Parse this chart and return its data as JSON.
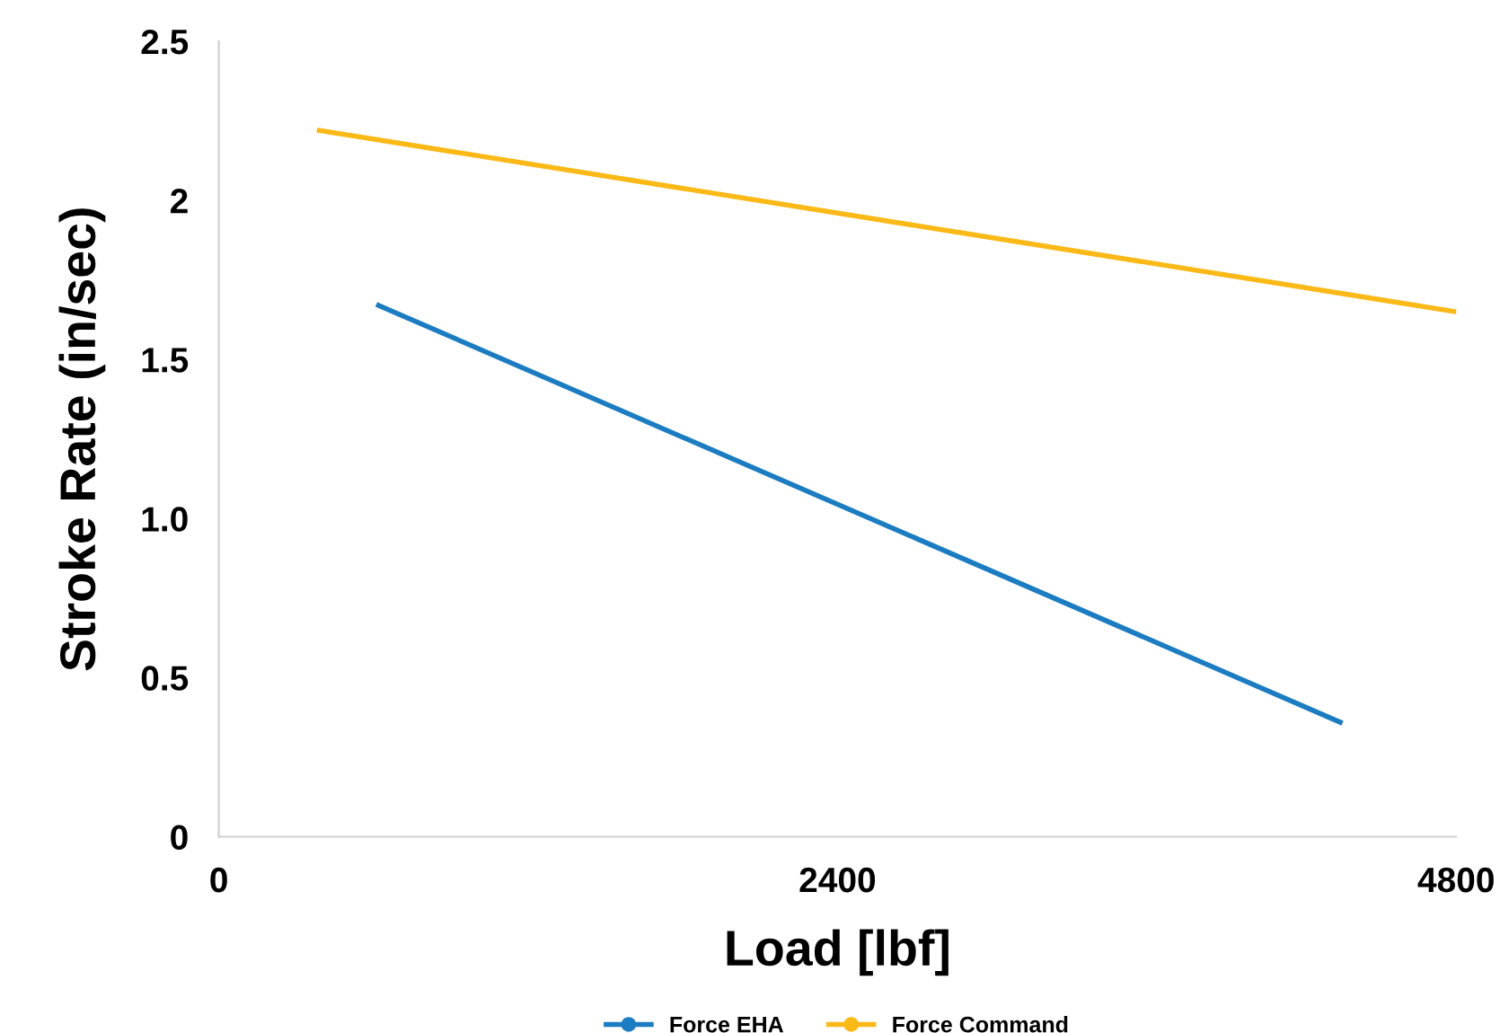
{
  "chart_data": {
    "type": "line",
    "xlabel": "Load [lbf]",
    "ylabel": "Stroke Rate (in/sec)",
    "xlim": [
      0,
      4800
    ],
    "xticks": [
      0,
      2400,
      4800
    ],
    "ylim": [
      0,
      2.5
    ],
    "yticks": [
      0,
      {
        "value": 0.5,
        "label": "0.5"
      },
      {
        "value": 1.0,
        "label": "1.0"
      },
      {
        "value": 1.5,
        "label": "1.5"
      },
      2,
      2.5
    ],
    "grid": false,
    "legend": "bottom",
    "line_style": "solid",
    "series": [
      {
        "name": "Force EHA",
        "color": "#1b7cc1",
        "x": [
          620,
          4350
        ],
        "values": [
          1.67,
          0.36
        ]
      },
      {
        "name": "Force Command",
        "color": "#fbb917",
        "x": [
          390,
          4800
        ],
        "values": [
          2.22,
          1.65
        ]
      }
    ]
  }
}
